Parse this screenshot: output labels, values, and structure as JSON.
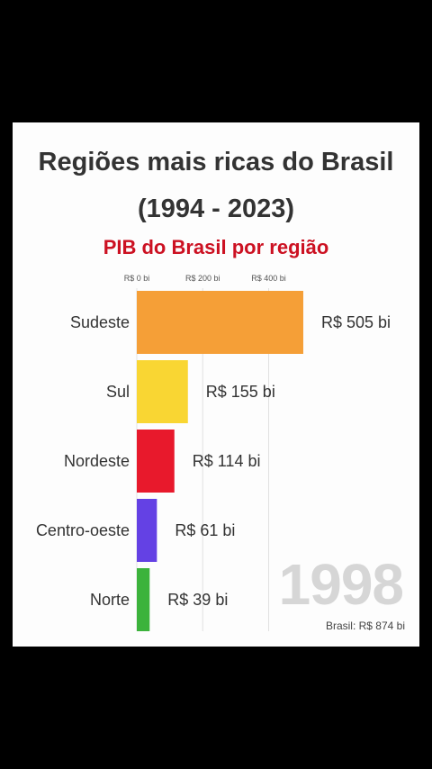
{
  "title_line1": "Regiões mais ricas do Brasil",
  "title_line2": "(1994 - 2023)",
  "subtitle": "PIB do Brasil por região",
  "year": "1998",
  "total_label": "Brasil: R$ 874 bi",
  "colors": {
    "subtitle": "#cc1122",
    "grid": "#e2e2e2",
    "year": "#d6d6d6"
  },
  "chart_data": {
    "type": "bar",
    "orientation": "horizontal",
    "categories": [
      "Sudeste",
      "Sul",
      "Nordeste",
      "Centro-oeste",
      "Norte"
    ],
    "values": [
      505,
      155,
      114,
      61,
      39
    ],
    "value_labels": [
      "R$ 505 bi",
      "R$ 155 bi",
      "R$ 114 bi",
      "R$ 61 bi",
      "R$ 39 bi"
    ],
    "bar_colors": [
      "#f59f37",
      "#f9d633",
      "#e8192c",
      "#6441e4",
      "#3cb33c"
    ],
    "x_ticks": [
      0,
      200,
      400
    ],
    "x_tick_labels": [
      "R$ 0 bi",
      "R$ 200 bi",
      "R$ 400 bi"
    ],
    "xlim": [
      0,
      560
    ],
    "grid": true,
    "legend": "none"
  }
}
